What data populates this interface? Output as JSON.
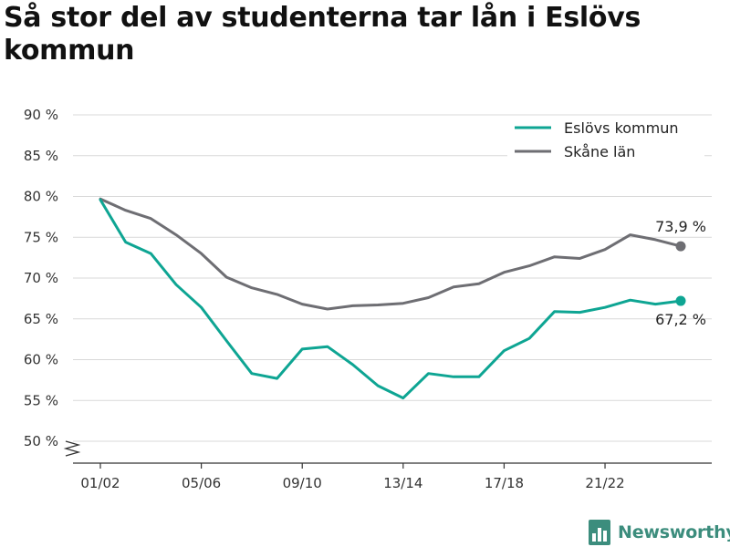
{
  "title": "Så stor del av studenterna tar lån i Eslövs kommun",
  "brand": {
    "name": "Newsworthy",
    "icon": "bar-chart-logo-icon",
    "color": "#3c8d7d"
  },
  "chart_data": {
    "type": "line",
    "title": "Så stor del av studenterna tar lån i Eslövs kommun",
    "xlabel": "",
    "ylabel": "",
    "ylim": [
      50,
      90
    ],
    "y_ticks": [
      50,
      55,
      60,
      65,
      70,
      75,
      80,
      85,
      90
    ],
    "y_tick_suffix": " %",
    "y_axis_break": true,
    "grid": "horizontal",
    "legend_position": "top-right",
    "x": [
      "01/02",
      "02/03",
      "03/04",
      "04/05",
      "05/06",
      "06/07",
      "07/08",
      "08/09",
      "09/10",
      "10/11",
      "11/12",
      "12/13",
      "13/14",
      "14/15",
      "15/16",
      "16/17",
      "17/18",
      "18/19",
      "19/20",
      "20/21",
      "21/22",
      "22/23",
      "23/24",
      "24/25"
    ],
    "x_tick_labels": [
      "01/02",
      "05/06",
      "09/10",
      "13/14",
      "17/18",
      "21/22"
    ],
    "series": [
      {
        "name": "Eslövs kommun",
        "color": "#0ea593",
        "values": [
          79.6,
          74.4,
          73.0,
          69.2,
          66.4,
          62.3,
          58.3,
          57.7,
          61.3,
          61.6,
          59.4,
          56.8,
          55.3,
          58.3,
          57.9,
          57.9,
          61.1,
          62.6,
          65.9,
          65.8,
          66.4,
          67.3,
          66.8,
          67.2
        ],
        "end_label": "67,2 %"
      },
      {
        "name": "Skåne län",
        "color": "#6e6e73",
        "values": [
          79.7,
          78.3,
          77.3,
          75.3,
          73.0,
          70.1,
          68.8,
          68.0,
          66.8,
          66.2,
          66.6,
          66.7,
          66.9,
          67.6,
          68.9,
          69.3,
          70.7,
          71.5,
          72.6,
          72.4,
          73.5,
          75.3,
          74.7,
          73.9
        ],
        "end_label": "73,9 %"
      }
    ]
  }
}
